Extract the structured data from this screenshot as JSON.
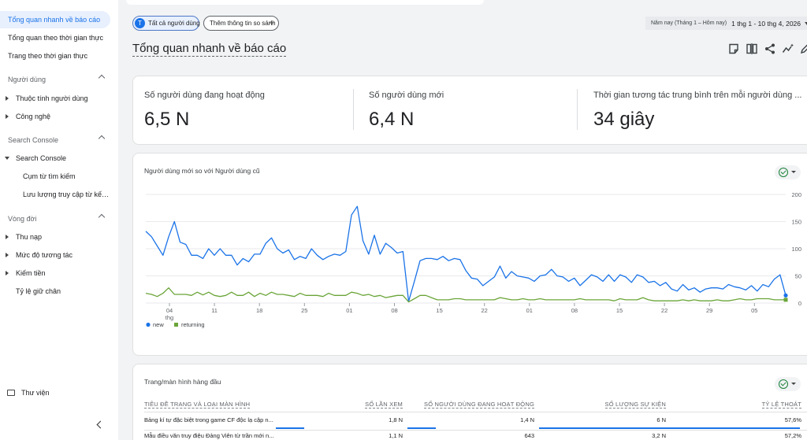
{
  "sidebar": {
    "items": [
      {
        "label": "Tổng quan nhanh về báo cáo",
        "active": true
      },
      {
        "label": "Tổng quan theo thời gian thực"
      },
      {
        "label": "Trang theo thời gian thực"
      }
    ],
    "sections": [
      {
        "label": "Người dùng",
        "children": [
          "Thuộc tính người dùng",
          "Công nghệ"
        ]
      },
      {
        "label": "Search Console",
        "children": [
          "Search Console"
        ],
        "subitems": [
          "Cụm từ tìm kiếm",
          "Lưu lượng truy cập từ kết ..."
        ]
      },
      {
        "label": "Vòng đời",
        "children": [
          "Thu nạp",
          "Mức độ tương tác",
          "Kiếm tiền",
          "Tỷ lệ giữ chân"
        ]
      }
    ],
    "library": "Thư viện"
  },
  "header": {
    "segment_avatar": "T",
    "segment_chip": "Tất cả người dùng",
    "compare_chip": "Thêm thông tin so sánh",
    "date_label": "Năm nay (Tháng 1 – Hôm nay)",
    "date_value": "1 thg 1 - 10 thg 4, 2026",
    "page_title": "Tổng quan nhanh về báo cáo"
  },
  "metrics": [
    {
      "label": "Số người dùng đang hoạt động",
      "value": "6,5 N"
    },
    {
      "label": "Số người dùng mới",
      "value": "6,4 N"
    },
    {
      "label": "Thời gian tương tác trung bình trên mỗi người dùng ...",
      "value": "34 giây"
    }
  ],
  "chart_card": {
    "title": "Người dùng mới so với Người dùng cũ"
  },
  "chart_data": {
    "type": "line",
    "title": "Người dùng mới so với Người dùng cũ",
    "x_tick_labels": [
      "04",
      "11",
      "18",
      "25",
      "01",
      "08",
      "15",
      "22",
      "01",
      "08",
      "15",
      "22",
      "29",
      "05"
    ],
    "x_tick_sublabel": "thg",
    "yticks": [
      0,
      50,
      100,
      150,
      200
    ],
    "ylim": [
      0,
      200
    ],
    "grid": true,
    "legend_position": "bottom-left",
    "series": [
      {
        "name": "new",
        "color": "#1a73e8",
        "values": [
          132,
          122,
          105,
          88,
          122,
          150,
          112,
          108,
          88,
          88,
          82,
          100,
          88,
          100,
          88,
          88,
          70,
          82,
          76,
          90,
          90,
          110,
          120,
          100,
          92,
          98,
          80,
          86,
          82,
          100,
          88,
          80,
          86,
          90,
          88,
          95,
          162,
          178,
          115,
          90,
          125,
          90,
          110,
          102,
          92,
          95,
          3,
          40,
          78,
          82,
          82,
          80,
          86,
          78,
          82,
          80,
          60,
          46,
          44,
          32,
          40,
          48,
          68,
          46,
          58,
          50,
          48,
          46,
          40,
          50,
          52,
          62,
          50,
          48,
          40,
          46,
          32,
          42,
          52,
          48,
          40,
          52,
          40,
          52,
          48,
          38,
          52,
          48,
          38,
          40,
          32,
          38,
          26,
          22,
          34,
          24,
          28,
          20,
          26,
          28,
          28,
          26,
          34,
          30,
          28,
          24,
          32,
          22,
          34,
          30,
          44,
          52,
          14
        ]
      },
      {
        "name": "returning",
        "color": "#6ba539",
        "values": [
          18,
          16,
          12,
          18,
          28,
          16,
          16,
          16,
          14,
          20,
          15,
          20,
          14,
          12,
          14,
          20,
          14,
          14,
          20,
          12,
          18,
          14,
          20,
          16,
          16,
          14,
          12,
          18,
          14,
          14,
          14,
          12,
          18,
          14,
          14,
          14,
          20,
          18,
          14,
          16,
          12,
          14,
          10,
          12,
          14,
          14,
          2,
          8,
          14,
          14,
          10,
          6,
          6,
          6,
          8,
          8,
          6,
          6,
          6,
          6,
          6,
          6,
          10,
          8,
          6,
          6,
          8,
          6,
          6,
          8,
          6,
          6,
          6,
          6,
          6,
          6,
          8,
          6,
          6,
          6,
          6,
          6,
          4,
          8,
          6,
          6,
          6,
          10,
          6,
          4,
          4,
          4,
          4,
          4,
          6,
          4,
          6,
          4,
          4,
          4,
          6,
          4,
          4,
          6,
          8,
          6,
          6,
          8,
          8,
          8,
          6,
          6,
          6
        ]
      }
    ]
  },
  "table": {
    "title": "Trang/màn hình hàng đầu",
    "columns": [
      "TIÊU ĐỀ TRANG VÀ LOẠI MÀN HÌNH",
      "SỐ LẦN XEM",
      "SỐ NGƯỜI DÙNG ĐANG HOẠT ĐỘNG",
      "SỐ LƯỢNG SỰ KIỆN",
      "TỶ LỆ THOÁT"
    ],
    "rows": [
      {
        "title": "Bảng kí tự đặc biệt trong game CF độc lạ cập n...",
        "views": "1,8 N",
        "active": "1,4 N",
        "events": "6 N",
        "bounce": "57,6%",
        "view_frac": 0.98,
        "active_frac": 0.98,
        "events_frac": 0.97,
        "bounce_frac": 0.95
      },
      {
        "title": "Mẫu điều văn truy điệu Đảng Viên từ trần mới n...",
        "views": "1,1 N",
        "active": "643",
        "events": "3,2 N",
        "bounce": "57,2%"
      }
    ]
  }
}
